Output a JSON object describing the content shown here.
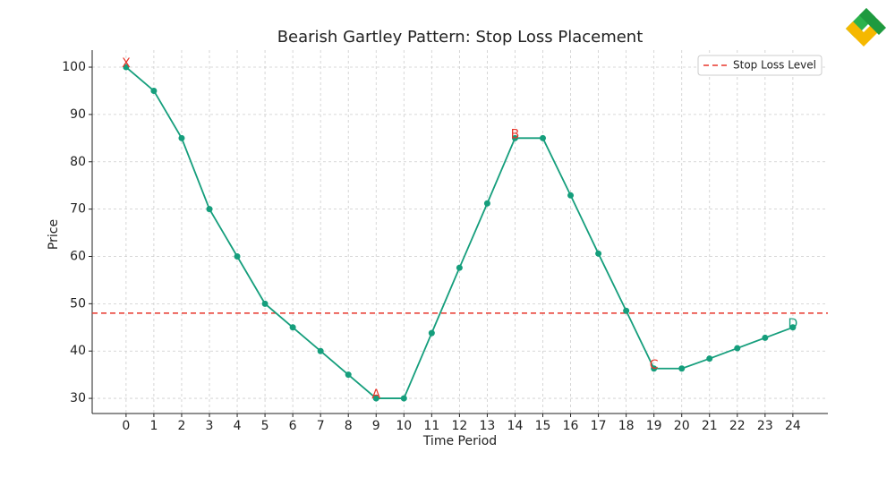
{
  "chart_data": {
    "type": "line",
    "title": "Bearish Gartley Pattern: Stop Loss Placement",
    "x_label": "Time Period",
    "y_label": "Price",
    "x": [
      0,
      1,
      2,
      3,
      4,
      5,
      6,
      7,
      8,
      9,
      10,
      11,
      12,
      13,
      14,
      15,
      16,
      17,
      18,
      19,
      20,
      21,
      22,
      23,
      24
    ],
    "series": [
      {
        "name": "Price",
        "color": "#159e7c",
        "values": [
          100,
          95,
          85,
          70,
          60,
          50,
          45,
          40,
          35,
          30,
          30,
          43.8,
          57.6,
          71.2,
          85,
          85,
          72.9,
          60.6,
          48.5,
          36.3,
          36.3,
          38.4,
          40.6,
          42.8,
          45
        ]
      }
    ],
    "stop_loss": {
      "name": "Stop Loss Level",
      "value": 48,
      "color": "#e8362b"
    },
    "annotations": [
      {
        "text": "X",
        "x": 0,
        "y": 100,
        "color": "#e8362b"
      },
      {
        "text": "A",
        "x": 9,
        "y": 30,
        "color": "#e8362b"
      },
      {
        "text": "B",
        "x": 14,
        "y": 85,
        "color": "#e8362b"
      },
      {
        "text": "C",
        "x": 19,
        "y": 36.3,
        "color": "#e8362b"
      },
      {
        "text": "D",
        "x": 24,
        "y": 45,
        "color": "#159e7c"
      }
    ],
    "xlim": [
      -1.22,
      25.26
    ],
    "ylim": [
      26.8,
      103.6
    ],
    "xticks": [
      0,
      1,
      2,
      3,
      4,
      5,
      6,
      7,
      8,
      9,
      10,
      11,
      12,
      13,
      14,
      15,
      16,
      17,
      18,
      19,
      20,
      21,
      22,
      23,
      24
    ],
    "yticks": [
      30,
      40,
      50,
      60,
      70,
      80,
      90,
      100
    ],
    "grid": true,
    "legend": "upper right"
  }
}
